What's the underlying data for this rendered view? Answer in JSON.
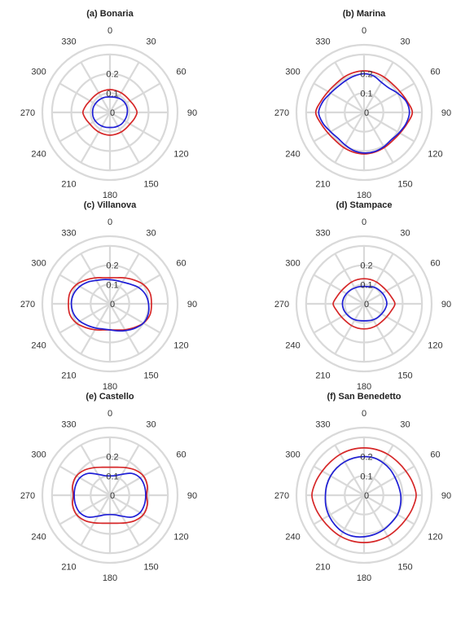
{
  "chart_data": [
    {
      "type": "polar-line",
      "title": "(a) Bonaria",
      "theta_labels": [
        "0",
        "30",
        "60",
        "90",
        "120",
        "150",
        "180",
        "210",
        "240",
        "270",
        "300",
        "330"
      ],
      "r_ticks": [
        0,
        0.1,
        0.2
      ],
      "r_tick_labels": [
        "0",
        "0.1",
        "0.2"
      ],
      "rlim": [
        0,
        0.35
      ],
      "series": [
        {
          "color": "#d62728",
          "theta_deg": [
            0,
            15,
            30,
            45,
            60,
            75,
            90,
            105,
            120,
            135,
            150,
            165,
            180,
            195,
            210,
            225,
            240,
            255,
            270,
            285,
            300,
            315,
            330,
            345
          ],
          "r": [
            0.118,
            0.117,
            0.117,
            0.117,
            0.12,
            0.13,
            0.14,
            0.13,
            0.12,
            0.117,
            0.117,
            0.117,
            0.118,
            0.117,
            0.117,
            0.117,
            0.12,
            0.13,
            0.14,
            0.13,
            0.12,
            0.117,
            0.117,
            0.117
          ]
        },
        {
          "color": "#1f1fd6",
          "theta_deg": [
            0,
            15,
            30,
            45,
            60,
            75,
            90,
            105,
            120,
            135,
            150,
            165,
            180,
            195,
            210,
            225,
            240,
            255,
            270,
            285,
            300,
            315,
            330,
            345
          ],
          "r": [
            0.08,
            0.082,
            0.086,
            0.09,
            0.092,
            0.092,
            0.09,
            0.088,
            0.086,
            0.085,
            0.082,
            0.08,
            0.078,
            0.08,
            0.082,
            0.085,
            0.088,
            0.09,
            0.09,
            0.09,
            0.088,
            0.086,
            0.084,
            0.082
          ]
        }
      ]
    },
    {
      "type": "polar-line",
      "title": "(b) Marina",
      "theta_labels": [
        "0",
        "30",
        "60",
        "90",
        "120",
        "150",
        "180",
        "210",
        "240",
        "270",
        "300",
        "330"
      ],
      "r_ticks": [
        0,
        0.1,
        0.2
      ],
      "r_tick_labels": [
        "0",
        "0.1",
        "0.2"
      ],
      "rlim": [
        0,
        0.35
      ],
      "series": [
        {
          "color": "#d62728",
          "theta_deg": [
            0,
            15,
            30,
            45,
            60,
            75,
            90,
            105,
            120,
            135,
            150,
            165,
            180,
            195,
            210,
            225,
            240,
            255,
            270,
            285,
            300,
            315,
            330,
            345
          ],
          "r": [
            0.215,
            0.213,
            0.21,
            0.208,
            0.215,
            0.23,
            0.25,
            0.23,
            0.215,
            0.208,
            0.21,
            0.213,
            0.215,
            0.213,
            0.21,
            0.208,
            0.215,
            0.23,
            0.25,
            0.23,
            0.215,
            0.208,
            0.21,
            0.213
          ]
        },
        {
          "color": "#1f1fd6",
          "theta_deg": [
            0,
            15,
            30,
            45,
            60,
            75,
            90,
            105,
            120,
            135,
            150,
            165,
            180,
            195,
            210,
            225,
            240,
            255,
            270,
            285,
            300,
            315,
            330,
            345
          ],
          "r": [
            0.2,
            0.195,
            0.18,
            0.18,
            0.2,
            0.225,
            0.235,
            0.225,
            0.21,
            0.2,
            0.205,
            0.21,
            0.21,
            0.205,
            0.195,
            0.19,
            0.2,
            0.22,
            0.235,
            0.22,
            0.2,
            0.19,
            0.19,
            0.195
          ]
        }
      ]
    },
    {
      "type": "polar-line",
      "title": "(c) Villanova",
      "theta_labels": [
        "0",
        "30",
        "60",
        "90",
        "120",
        "150",
        "180",
        "210",
        "240",
        "270",
        "300",
        "330"
      ],
      "r_ticks": [
        0,
        0.1,
        0.2
      ],
      "r_tick_labels": [
        "0",
        "0.1",
        "0.2"
      ],
      "rlim": [
        0,
        0.35
      ],
      "series": [
        {
          "color": "#d62728",
          "theta_deg": [
            0,
            15,
            30,
            45,
            60,
            75,
            90,
            105,
            120,
            135,
            150,
            165,
            180,
            195,
            210,
            225,
            240,
            255,
            270,
            285,
            300,
            315,
            330,
            345
          ],
          "r": [
            0.135,
            0.14,
            0.155,
            0.175,
            0.2,
            0.215,
            0.215,
            0.215,
            0.2,
            0.175,
            0.155,
            0.14,
            0.135,
            0.14,
            0.155,
            0.175,
            0.2,
            0.215,
            0.215,
            0.215,
            0.2,
            0.175,
            0.155,
            0.14
          ]
        },
        {
          "color": "#1f1fd6",
          "theta_deg": [
            0,
            15,
            30,
            45,
            60,
            75,
            90,
            105,
            120,
            135,
            150,
            165,
            180,
            195,
            210,
            225,
            240,
            255,
            270,
            285,
            300,
            315,
            330,
            345
          ],
          "r": [
            0.125,
            0.125,
            0.13,
            0.145,
            0.17,
            0.19,
            0.2,
            0.205,
            0.2,
            0.18,
            0.16,
            0.145,
            0.135,
            0.135,
            0.145,
            0.16,
            0.18,
            0.195,
            0.2,
            0.195,
            0.18,
            0.16,
            0.14,
            0.13
          ]
        }
      ]
    },
    {
      "type": "polar-line",
      "title": "(d) Stampace",
      "theta_labels": [
        "0",
        "30",
        "60",
        "90",
        "120",
        "150",
        "180",
        "210",
        "240",
        "270",
        "300",
        "330"
      ],
      "r_ticks": [
        0,
        0.1,
        0.2
      ],
      "r_tick_labels": [
        "0",
        "0.1",
        "0.2"
      ],
      "rlim": [
        0,
        0.35
      ],
      "series": [
        {
          "color": "#d62728",
          "theta_deg": [
            0,
            15,
            30,
            45,
            60,
            75,
            90,
            105,
            120,
            135,
            150,
            165,
            180,
            195,
            210,
            225,
            240,
            255,
            270,
            285,
            300,
            315,
            330,
            345
          ],
          "r": [
            0.13,
            0.13,
            0.13,
            0.13,
            0.135,
            0.145,
            0.16,
            0.145,
            0.135,
            0.13,
            0.13,
            0.13,
            0.13,
            0.13,
            0.13,
            0.13,
            0.135,
            0.145,
            0.16,
            0.145,
            0.135,
            0.13,
            0.13,
            0.13
          ]
        },
        {
          "color": "#1f1fd6",
          "theta_deg": [
            0,
            15,
            30,
            45,
            60,
            75,
            90,
            105,
            120,
            135,
            150,
            165,
            180,
            195,
            210,
            225,
            240,
            255,
            270,
            285,
            300,
            315,
            330,
            345
          ],
          "r": [
            0.09,
            0.092,
            0.1,
            0.105,
            0.11,
            0.115,
            0.118,
            0.112,
            0.105,
            0.1,
            0.095,
            0.09,
            0.088,
            0.09,
            0.095,
            0.1,
            0.105,
            0.11,
            0.112,
            0.11,
            0.105,
            0.1,
            0.095,
            0.092
          ]
        }
      ]
    },
    {
      "type": "polar-line",
      "title": "(e) Castello",
      "theta_labels": [
        "0",
        "30",
        "60",
        "90",
        "120",
        "150",
        "180",
        "210",
        "240",
        "270",
        "300",
        "330"
      ],
      "r_ticks": [
        0,
        0.1,
        0.2
      ],
      "r_tick_labels": [
        "0",
        "0.1",
        "0.2"
      ],
      "rlim": [
        0,
        0.35
      ],
      "series": [
        {
          "color": "#d62728",
          "theta_deg": [
            0,
            15,
            30,
            45,
            60,
            75,
            90,
            105,
            120,
            135,
            150,
            165,
            180,
            195,
            210,
            225,
            240,
            255,
            270,
            285,
            300,
            315,
            330,
            345
          ],
          "r": [
            0.145,
            0.15,
            0.165,
            0.185,
            0.2,
            0.2,
            0.19,
            0.2,
            0.2,
            0.185,
            0.165,
            0.15,
            0.145,
            0.15,
            0.165,
            0.185,
            0.2,
            0.2,
            0.19,
            0.2,
            0.2,
            0.185,
            0.165,
            0.15
          ]
        },
        {
          "color": "#1f1fd6",
          "theta_deg": [
            0,
            15,
            30,
            45,
            60,
            75,
            90,
            105,
            120,
            135,
            150,
            165,
            180,
            195,
            210,
            225,
            240,
            255,
            270,
            285,
            300,
            315,
            330,
            345
          ],
          "r": [
            0.1,
            0.105,
            0.125,
            0.16,
            0.18,
            0.185,
            0.185,
            0.185,
            0.18,
            0.16,
            0.125,
            0.105,
            0.1,
            0.105,
            0.125,
            0.16,
            0.18,
            0.185,
            0.185,
            0.185,
            0.18,
            0.16,
            0.125,
            0.105
          ]
        }
      ]
    },
    {
      "type": "polar-line",
      "title": "(f) San Benedetto",
      "theta_labels": [
        "0",
        "30",
        "60",
        "90",
        "120",
        "150",
        "180",
        "210",
        "240",
        "270",
        "300",
        "330"
      ],
      "r_ticks": [
        0,
        0.1,
        0.2
      ],
      "r_tick_labels": [
        "0",
        "0.1",
        "0.2"
      ],
      "rlim": [
        0,
        0.35
      ],
      "series": [
        {
          "color": "#d62728",
          "theta_deg": [
            0,
            15,
            30,
            45,
            60,
            75,
            90,
            105,
            120,
            135,
            150,
            165,
            180,
            195,
            210,
            225,
            240,
            255,
            270,
            285,
            300,
            315,
            330,
            345
          ],
          "r": [
            0.245,
            0.245,
            0.245,
            0.245,
            0.25,
            0.26,
            0.27,
            0.26,
            0.25,
            0.245,
            0.245,
            0.245,
            0.245,
            0.245,
            0.245,
            0.245,
            0.25,
            0.26,
            0.27,
            0.26,
            0.25,
            0.245,
            0.245,
            0.245
          ]
        },
        {
          "color": "#1f1fd6",
          "theta_deg": [
            0,
            15,
            30,
            45,
            60,
            75,
            90,
            105,
            120,
            135,
            150,
            165,
            180,
            195,
            210,
            225,
            240,
            255,
            270,
            285,
            300,
            315,
            330,
            345
          ],
          "r": [
            0.2,
            0.2,
            0.195,
            0.19,
            0.185,
            0.185,
            0.19,
            0.195,
            0.2,
            0.2,
            0.205,
            0.21,
            0.215,
            0.22,
            0.22,
            0.215,
            0.21,
            0.205,
            0.2,
            0.2,
            0.2,
            0.2,
            0.2,
            0.2
          ]
        }
      ]
    }
  ]
}
